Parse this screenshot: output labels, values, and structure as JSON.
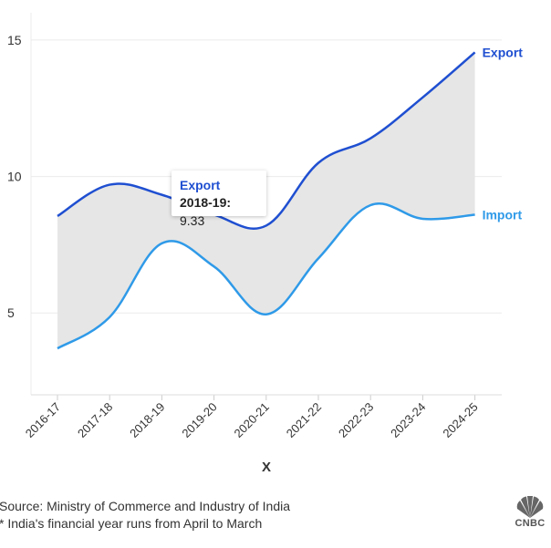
{
  "chart_data": {
    "type": "line",
    "categories": [
      "2016-17",
      "2017-18",
      "2018-19",
      "2019-20",
      "2020-21",
      "2021-22",
      "2022-23",
      "2023-24",
      "2024-25"
    ],
    "series": [
      {
        "name": "Export",
        "values": [
          8.55,
          9.7,
          9.33,
          8.6,
          8.2,
          10.5,
          11.4,
          12.9,
          14.55
        ],
        "color": "#1f4fd1"
      },
      {
        "name": "Import",
        "values": [
          3.7,
          4.85,
          7.55,
          6.7,
          4.95,
          7.0,
          8.95,
          8.45,
          8.6
        ],
        "color": "#2f9ae8"
      }
    ],
    "yticks": [
      5,
      10,
      15
    ],
    "ylim": [
      2.0,
      16.0
    ],
    "xlabel": "X",
    "ylabel": "",
    "title": "",
    "grid": true,
    "fill_between": true,
    "fill_color": "#e6e6e6"
  },
  "tooltip": {
    "series": "Export",
    "category": "2018-19:",
    "value": "9.33"
  },
  "footer": {
    "source": "Source: Ministry of Commerce and Industry of India",
    "note": "* India's financial year runs from April to March"
  },
  "logo": {
    "text": "CNBC",
    "icon": "nbc-peacock-icon"
  }
}
